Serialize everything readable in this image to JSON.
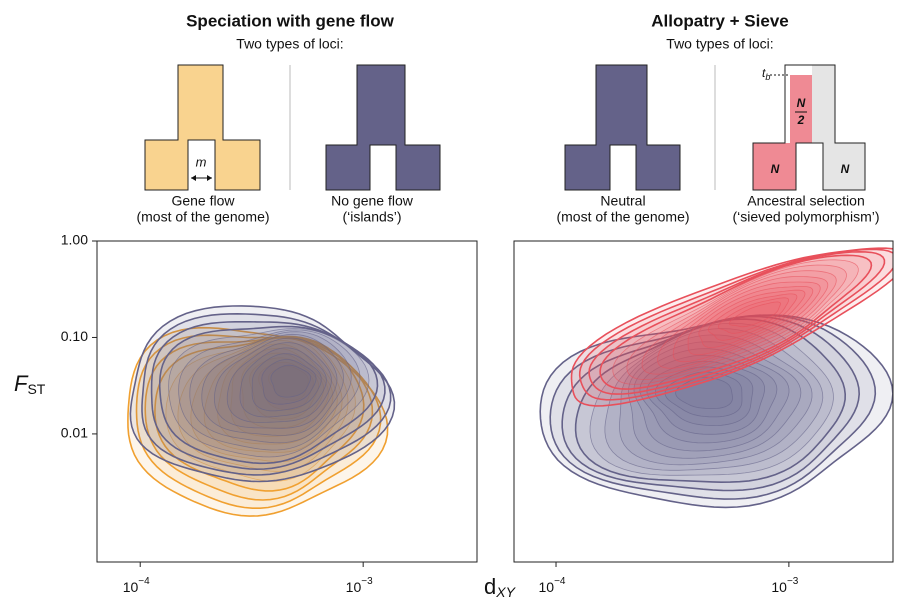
{
  "figure": {
    "xlabel": "d",
    "xlabel_sub": "XY",
    "ylabel": "F",
    "ylabel_sub": "ST"
  },
  "chart_data": [
    {
      "type": "contour",
      "title": "Speciation with gene flow",
      "subtitle": "Two types of loci:",
      "schematics": [
        {
          "label": "Gene flow",
          "sublabel": "(most of the genome)",
          "color": "#f9d38f",
          "arrow_label": "m"
        },
        {
          "label": "No gene flow",
          "sublabel": "(‘islands’)",
          "color": "#646289"
        }
      ],
      "contour_colors": [
        "#f0a030",
        "#646289"
      ],
      "log_x": true,
      "log_y": true,
      "xlim": [
        6.4e-05,
        0.00324
      ],
      "ylim": [
        0.00047,
        1
      ],
      "xticks": [
        {
          "value": 0.0001,
          "label": "10",
          "exponent": "−4"
        },
        {
          "value": 0.001,
          "label": "10",
          "exponent": "−3"
        }
      ],
      "yticks": [
        0.01,
        {
          "value": 0.1,
          "label": "0.10"
        },
        {
          "value": 1,
          "label": "1.00"
        }
      ]
    },
    {
      "type": "contour",
      "title": "Allopatry + Sieve",
      "subtitle": "Two types of loci:",
      "schematics": [
        {
          "label": "Neutral",
          "sublabel": "(most of the genome)",
          "color": "#646289"
        },
        {
          "label": "Ancestral selection",
          "sublabel": "(‘sieved polymorphism’)",
          "color": "#ef8a94",
          "time_label": "t",
          "time_sub": "b",
          "trunk_num": "N",
          "trunk_den": "2",
          "leg_labels": [
            "N",
            "N"
          ]
        }
      ],
      "contour_colors": [
        "#646289",
        "#e8505b"
      ],
      "log_x": true,
      "log_y": true,
      "xlim": [
        6.6e-05,
        0.0028
      ],
      "ylim": [
        0.00047,
        1
      ],
      "xticks": [
        {
          "value": 0.0001,
          "label": "10",
          "exponent": "−4"
        },
        {
          "value": 0.001,
          "label": "10",
          "exponent": "−3"
        }
      ]
    }
  ]
}
